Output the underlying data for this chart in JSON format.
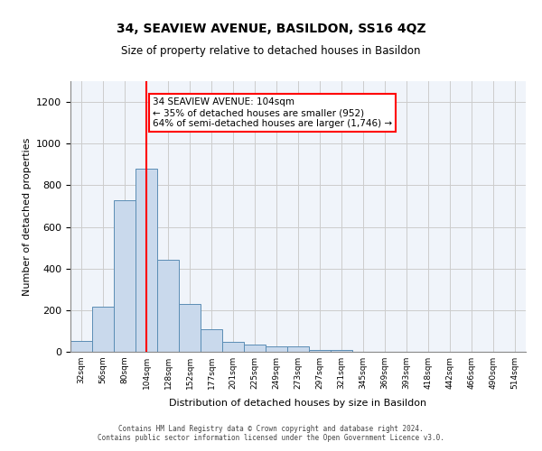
{
  "title": "34, SEAVIEW AVENUE, BASILDON, SS16 4QZ",
  "subtitle": "Size of property relative to detached houses in Basildon",
  "xlabel": "Distribution of detached houses by size in Basildon",
  "ylabel": "Number of detached properties",
  "annotation_line1": "34 SEAVIEW AVENUE: 104sqm",
  "annotation_line2": "← 35% of detached houses are smaller (952)",
  "annotation_line3": "64% of semi-detached houses are larger (1,746) →",
  "property_size_sqm": 104,
  "bar_color": "#c9d9ec",
  "bar_edge_color": "#5a8db5",
  "redline_color": "red",
  "annotation_box_color": "red",
  "annotation_bg": "white",
  "grid_color": "#cccccc",
  "bin_labels": [
    "32sqm",
    "56sqm",
    "80sqm",
    "104sqm",
    "128sqm",
    "152sqm",
    "177sqm",
    "201sqm",
    "225sqm",
    "249sqm",
    "273sqm",
    "297sqm",
    "321sqm",
    "345sqm",
    "369sqm",
    "393sqm",
    "418sqm",
    "442sqm",
    "466sqm",
    "490sqm",
    "514sqm"
  ],
  "bin_values": [
    50,
    215,
    730,
    880,
    440,
    230,
    110,
    47,
    35,
    25,
    25,
    10,
    10,
    0,
    0,
    0,
    0,
    0,
    0,
    0,
    0
  ],
  "ylim": [
    0,
    1300
  ],
  "yticks": [
    0,
    200,
    400,
    600,
    800,
    1000,
    1200
  ],
  "footer_line1": "Contains HM Land Registry data © Crown copyright and database right 2024.",
  "footer_line2": "Contains public sector information licensed under the Open Government Licence v3.0.",
  "background_color": "#f0f4fa"
}
